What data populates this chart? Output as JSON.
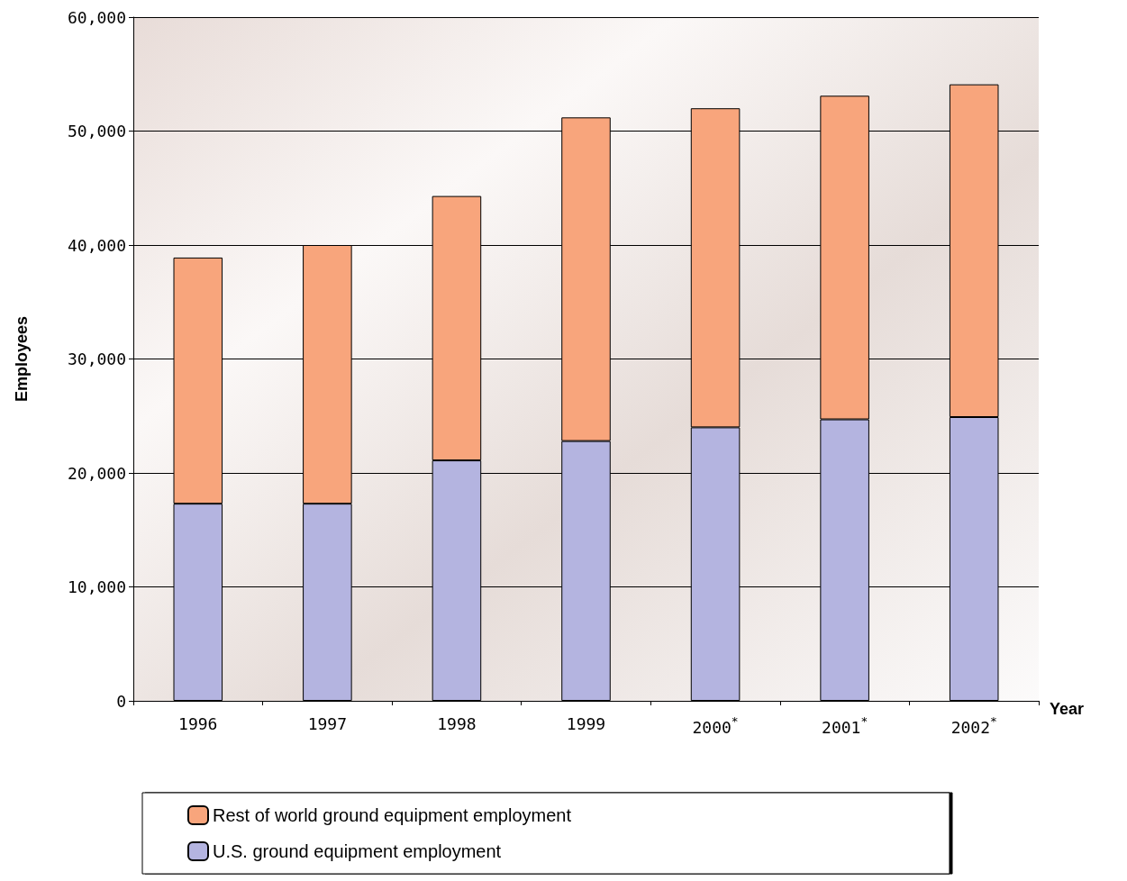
{
  "chart_data": {
    "type": "bar",
    "stacked": true,
    "xlabel": "Year",
    "ylabel": "Employees",
    "categories": [
      "1996",
      "1997",
      "1998",
      "1999",
      "2000$^{*}$",
      "2001$^{*}$",
      "2002$^{*}$"
    ],
    "series": [
      {
        "name": "U.S. ground equipment employment",
        "color": "#b4b4e0",
        "values": [
          17300,
          17300,
          21100,
          22800,
          24000,
          24700,
          24900
        ]
      },
      {
        "name": "Rest of world ground equipment employment",
        "color": "#f8a57c",
        "values": [
          21600,
          22700,
          23200,
          28400,
          28000,
          28400,
          29200
        ]
      }
    ],
    "ylim": [
      0,
      60000
    ],
    "yticks": [
      {
        "value": 0,
        "label": "0"
      },
      {
        "value": 10000,
        "label": "10,000"
      },
      {
        "value": 20000,
        "label": "20,000"
      },
      {
        "value": 30000,
        "label": "30,000"
      },
      {
        "value": 40000,
        "label": "40,000"
      },
      {
        "value": 50000,
        "label": "50,000"
      },
      {
        "value": 60000,
        "label": "60,000"
      }
    ],
    "grid": "y",
    "legend": "bottom"
  }
}
